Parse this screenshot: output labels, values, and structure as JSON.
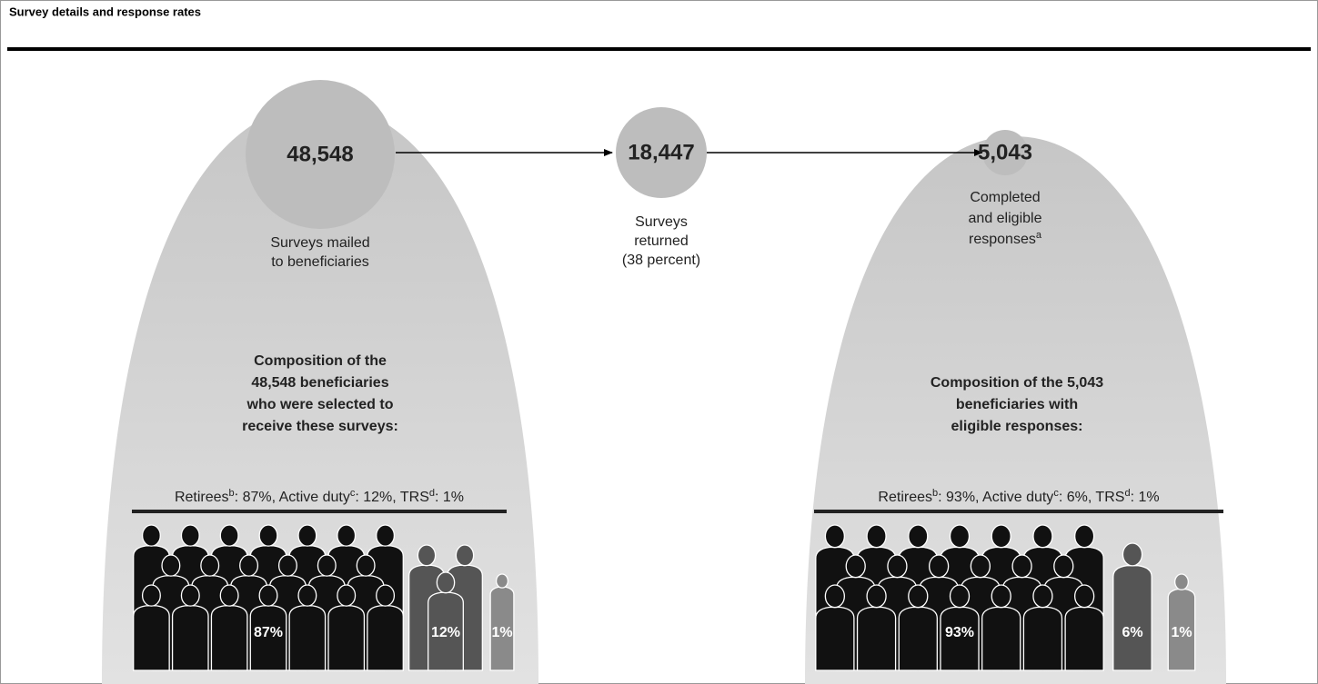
{
  "header": {
    "title": "Survey details and response rates"
  },
  "stages": [
    {
      "number": "48,548",
      "label": [
        "Surveys mailed",
        "to beneficiaries"
      ]
    },
    {
      "number": "18,447",
      "label": [
        "Surveys",
        "returned",
        "(38 percent)"
      ]
    },
    {
      "number": "5,043",
      "label": [
        "Completed",
        "and eligible",
        "responses"
      ],
      "note": "a"
    }
  ],
  "compositions": [
    {
      "heading": [
        "Composition of the",
        "48,548 beneficiaries",
        "who were selected to",
        "receive these surveys:"
      ],
      "breakdown": [
        {
          "text": "Retirees"
        },
        {
          "text": "b",
          "superscript": true
        },
        {
          "text": ": 87%, Active duty"
        },
        {
          "text": "c",
          "superscript": true
        },
        {
          "text": ": 12%, TRS"
        },
        {
          "text": "d",
          "superscript": true
        },
        {
          "text": ": 1%"
        }
      ],
      "groups": [
        {
          "label": "87%"
        },
        {
          "label": "12%"
        },
        {
          "label": "1%"
        }
      ]
    },
    {
      "heading": [
        "Composition of the 5,043",
        "beneficiaries with",
        "eligible responses:"
      ],
      "breakdown": [
        {
          "text": "Retirees"
        },
        {
          "text": "b",
          "superscript": true
        },
        {
          "text": ": 93%, Active duty"
        },
        {
          "text": "c",
          "superscript": true
        },
        {
          "text": ": 6%, TRS"
        },
        {
          "text": "d",
          "superscript": true
        },
        {
          "text": ": 1%"
        }
      ],
      "groups": [
        {
          "label": "93%"
        },
        {
          "label": "6%"
        },
        {
          "label": "1%"
        }
      ]
    }
  ]
}
